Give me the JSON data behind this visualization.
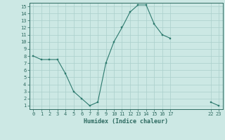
{
  "xlabel": "Humidex (Indice chaleur)",
  "x_values": [
    0,
    1,
    2,
    3,
    4,
    5,
    6,
    7,
    8,
    9,
    10,
    11,
    12,
    13,
    14,
    15,
    16,
    17,
    22,
    23
  ],
  "y_values": [
    8,
    7.5,
    7.5,
    7.5,
    5.5,
    3.0,
    2.0,
    1.0,
    1.5,
    7.0,
    10.0,
    12.0,
    14.2,
    15.2,
    15.2,
    12.5,
    11.0,
    10.5,
    1.5,
    1.0
  ],
  "line_color": "#2d7a6e",
  "marker_color": "#2d7a6e",
  "bg_color": "#cce8e4",
  "grid_color": "#aacfcb",
  "axis_color": "#2d6a60",
  "tick_label_color": "#2d6a60",
  "xlim": [
    -0.5,
    23.5
  ],
  "ylim": [
    0.5,
    15.5
  ],
  "xticks": [
    0,
    1,
    2,
    3,
    4,
    5,
    6,
    7,
    8,
    9,
    10,
    11,
    12,
    13,
    14,
    15,
    16,
    17,
    22,
    23
  ],
  "yticks": [
    1,
    2,
    3,
    4,
    5,
    6,
    7,
    8,
    9,
    10,
    11,
    12,
    13,
    14,
    15
  ],
  "figsize": [
    3.2,
    2.0
  ],
  "dpi": 100
}
